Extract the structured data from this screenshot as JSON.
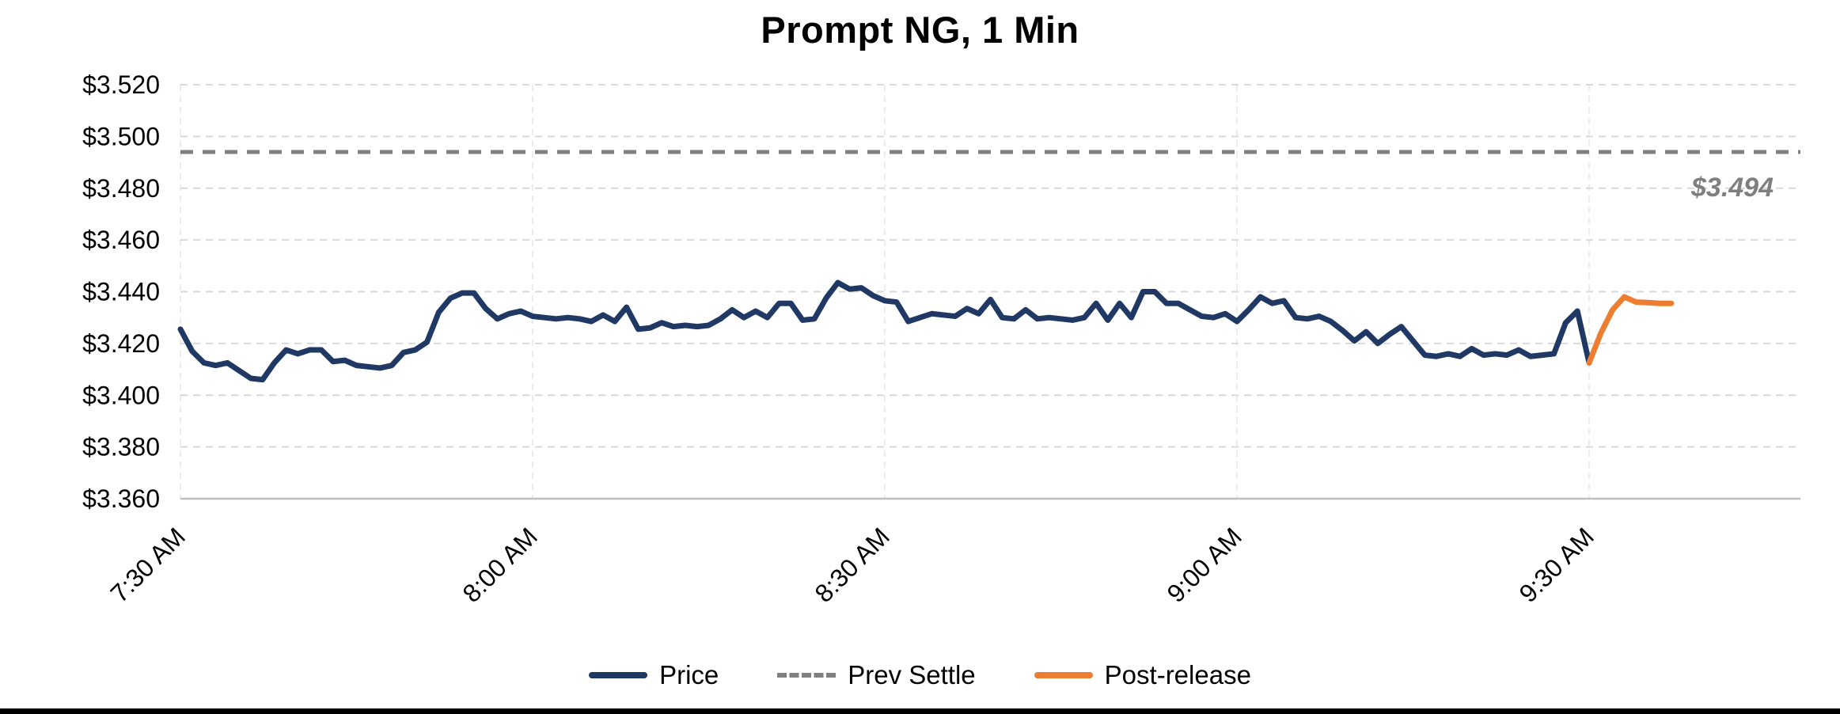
{
  "chart_data": {
    "type": "line",
    "title": "Prompt NG, 1 Min",
    "x_axis": {
      "tick_labels": [
        "7:30 AM",
        "8:00 AM",
        "8:30 AM",
        "9:00 AM",
        "9:30 AM"
      ],
      "tick_minutes": [
        0,
        30,
        60,
        90,
        120
      ],
      "range_minutes": [
        0,
        138
      ]
    },
    "y_axis": {
      "tick_labels": [
        "$3.520",
        "$3.500",
        "$3.480",
        "$3.460",
        "$3.440",
        "$3.420",
        "$3.400",
        "$3.380",
        "$3.360"
      ],
      "tick_values": [
        3.52,
        3.5,
        3.48,
        3.46,
        3.44,
        3.42,
        3.4,
        3.38,
        3.36
      ],
      "range": [
        3.36,
        3.52
      ]
    },
    "grid": {
      "color": "#d9d9d9",
      "style": "dashed"
    },
    "prev_settle": {
      "label": "Prev Settle",
      "value": 3.494,
      "annotation": "$3.494",
      "color": "#7f7f7f"
    },
    "series": [
      {
        "name": "Price",
        "color": "#1f3864",
        "start_minute": 0,
        "step_minutes": 1,
        "values": [
          3.4255,
          3.417,
          3.4125,
          3.4115,
          3.4125,
          3.4095,
          3.4065,
          3.406,
          3.4125,
          3.4175,
          3.416,
          3.4175,
          3.4175,
          3.413,
          3.4135,
          3.4115,
          3.411,
          3.4105,
          3.4115,
          3.4165,
          3.4175,
          3.4205,
          3.432,
          3.4375,
          3.4395,
          3.4395,
          3.4335,
          3.4295,
          3.4315,
          3.4325,
          3.4305,
          3.43,
          3.4295,
          3.43,
          3.4295,
          3.4285,
          3.431,
          3.4285,
          3.434,
          3.4255,
          3.426,
          3.428,
          3.4265,
          3.427,
          3.4265,
          3.427,
          3.4295,
          3.433,
          3.43,
          3.4325,
          3.43,
          3.4355,
          3.4355,
          3.429,
          3.4295,
          3.4375,
          3.4435,
          3.441,
          3.4415,
          3.4385,
          3.4365,
          3.436,
          3.4285,
          3.43,
          3.4315,
          3.431,
          3.4305,
          3.4335,
          3.4315,
          3.437,
          3.43,
          3.4295,
          3.433,
          3.4295,
          3.43,
          3.4295,
          3.429,
          3.43,
          3.4355,
          3.429,
          3.4355,
          3.43,
          3.44,
          3.44,
          3.4355,
          3.4355,
          3.433,
          3.4305,
          3.43,
          3.4315,
          3.4285,
          3.433,
          3.438,
          3.4355,
          3.4365,
          3.43,
          3.4295,
          3.4305,
          3.4285,
          3.425,
          3.421,
          3.4245,
          3.42,
          3.4235,
          3.4265,
          3.421,
          3.4155,
          3.415,
          3.416,
          3.415,
          3.418,
          3.4155,
          3.416,
          3.4155,
          3.4175,
          3.415,
          3.4155,
          3.416,
          3.428,
          3.4325,
          3.4125
        ]
      },
      {
        "name": "Post-release",
        "color": "#ed7d31",
        "start_minute": 120,
        "step_minutes": 1,
        "values": [
          3.4125,
          3.424,
          3.433,
          3.438,
          3.436,
          3.4358,
          3.4355,
          3.4355
        ]
      }
    ]
  }
}
